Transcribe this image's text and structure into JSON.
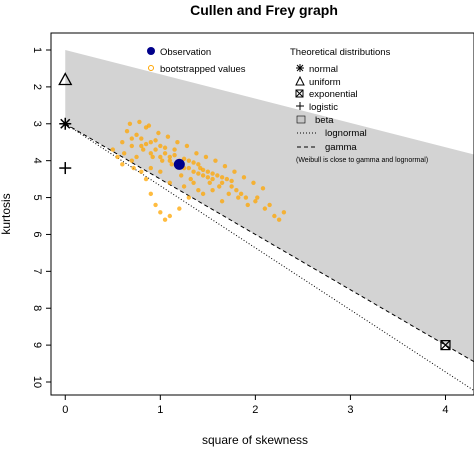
{
  "chart_data": {
    "type": "scatter",
    "title": "Cullen and Frey graph",
    "xlabel": "square of skewness",
    "ylabel": "kurtosis",
    "xlim": [
      -0.15,
      4.3
    ],
    "ylim": [
      1,
      10
    ],
    "y_axis_reversed": true,
    "x_ticks": [
      0,
      1,
      2,
      3,
      4
    ],
    "y_ticks": [
      1,
      2,
      3,
      4,
      5,
      6,
      7,
      8,
      9,
      10
    ],
    "observation": {
      "x": 1.2,
      "y": 4.1,
      "color": "#00008b"
    },
    "bootstrapped_color": "#ffa500",
    "bootstrapped_values": [
      [
        0.6,
        3.5
      ],
      [
        0.65,
        3.2
      ],
      [
        0.7,
        3.6
      ],
      [
        0.75,
        3.3
      ],
      [
        0.8,
        3.4
      ],
      [
        0.85,
        3.1
      ],
      [
        0.9,
        3.5
      ],
      [
        0.95,
        3.7
      ],
      [
        1.0,
        3.6
      ],
      [
        1.05,
        3.8
      ],
      [
        1.1,
        3.9
      ],
      [
        1.15,
        3.7
      ],
      [
        1.2,
        4.0
      ],
      [
        1.25,
        4.2
      ],
      [
        1.3,
        4.0
      ],
      [
        1.35,
        4.3
      ],
      [
        1.4,
        4.1
      ],
      [
        1.45,
        4.4
      ],
      [
        1.5,
        4.3
      ],
      [
        1.55,
        4.5
      ],
      [
        1.6,
        4.4
      ],
      [
        1.65,
        4.6
      ],
      [
        1.7,
        4.5
      ],
      [
        1.75,
        4.7
      ],
      [
        1.8,
        4.8
      ],
      [
        1.85,
        4.9
      ],
      [
        1.9,
        5.0
      ],
      [
        2.0,
        5.1
      ],
      [
        2.1,
        5.3
      ],
      [
        2.2,
        5.5
      ],
      [
        2.3,
        5.4
      ],
      [
        0.55,
        3.9
      ],
      [
        0.6,
        4.1
      ],
      [
        0.7,
        4.0
      ],
      [
        0.8,
        4.3
      ],
      [
        0.85,
        4.5
      ],
      [
        0.9,
        4.9
      ],
      [
        0.95,
        5.2
      ],
      [
        1.0,
        5.4
      ],
      [
        1.05,
        5.6
      ],
      [
        1.1,
        5.5
      ],
      [
        1.2,
        5.3
      ],
      [
        1.3,
        5.0
      ],
      [
        1.4,
        4.8
      ],
      [
        0.75,
        3.9
      ],
      [
        0.9,
        4.2
      ],
      [
        1.0,
        4.3
      ],
      [
        1.1,
        4.6
      ],
      [
        1.25,
        4.7
      ],
      [
        1.35,
        4.6
      ],
      [
        1.45,
        4.9
      ],
      [
        1.55,
        4.8
      ],
      [
        1.65,
        5.1
      ],
      [
        0.68,
        3.0
      ],
      [
        0.78,
        2.95
      ],
      [
        0.88,
        3.05
      ],
      [
        0.98,
        3.25
      ],
      [
        1.08,
        3.35
      ],
      [
        1.18,
        3.5
      ],
      [
        1.28,
        3.6
      ],
      [
        1.38,
        3.8
      ],
      [
        1.48,
        3.9
      ],
      [
        1.58,
        4.0
      ],
      [
        1.68,
        4.15
      ],
      [
        1.78,
        4.3
      ],
      [
        1.88,
        4.45
      ],
      [
        1.98,
        4.6
      ],
      [
        2.08,
        4.75
      ],
      [
        0.5,
        3.7
      ],
      [
        0.62,
        3.8
      ],
      [
        0.72,
        4.2
      ],
      [
        0.82,
        3.7
      ],
      [
        0.92,
        3.9
      ],
      [
        1.02,
        4.0
      ],
      [
        1.12,
        4.1
      ],
      [
        1.22,
        4.4
      ],
      [
        1.32,
        4.5
      ],
      [
        1.42,
        4.2
      ],
      [
        1.52,
        4.6
      ],
      [
        1.62,
        4.7
      ],
      [
        1.72,
        4.9
      ],
      [
        1.82,
        5.0
      ],
      [
        1.92,
        5.2
      ],
      [
        2.02,
        5.0
      ],
      [
        2.15,
        5.2
      ],
      [
        2.25,
        5.6
      ],
      [
        0.85,
        3.55
      ],
      [
        0.95,
        3.45
      ],
      [
        1.05,
        3.65
      ],
      [
        1.15,
        3.85
      ],
      [
        1.25,
        3.95
      ],
      [
        1.35,
        4.05
      ],
      [
        1.45,
        4.25
      ],
      [
        1.55,
        4.35
      ],
      [
        1.65,
        4.45
      ],
      [
        1.75,
        4.55
      ],
      [
        1.0,
        3.9
      ],
      [
        1.1,
        4.0
      ],
      [
        1.2,
        4.1
      ],
      [
        1.3,
        4.2
      ],
      [
        0.9,
        3.8
      ],
      [
        0.8,
        3.6
      ],
      [
        0.7,
        3.4
      ],
      [
        1.4,
        4.35
      ],
      [
        1.5,
        4.45
      ]
    ],
    "theoretical": {
      "normal": {
        "x": 0,
        "y": 3
      },
      "uniform": {
        "x": 0,
        "y": 1.8
      },
      "exponential": {
        "x": 4,
        "y": 9
      },
      "logistic": {
        "x": 0,
        "y": 4.2
      },
      "beta_region_upper": [
        [
          0,
          1
        ],
        [
          4.4,
          3.9
        ]
      ],
      "beta_region_lower": [
        [
          0,
          3
        ],
        [
          4.4,
          9.6
        ]
      ],
      "lognormal_line": [
        [
          0,
          3
        ],
        [
          4.4,
          10.4
        ]
      ],
      "gamma_line": [
        [
          0,
          3
        ],
        [
          4.4,
          9.6
        ]
      ]
    },
    "legend_left": {
      "observation_label": "Observation",
      "bootstrapped_label": "bootstrapped values"
    },
    "legend_right": {
      "title": "Theoretical distributions",
      "normal": "normal",
      "uniform": "uniform",
      "exponential": "exponential",
      "logistic": "logistic",
      "beta": "beta",
      "lognormal": "lognormal",
      "gamma": "gamma",
      "note": "(Weibull is close to gamma and lognormal)"
    }
  }
}
